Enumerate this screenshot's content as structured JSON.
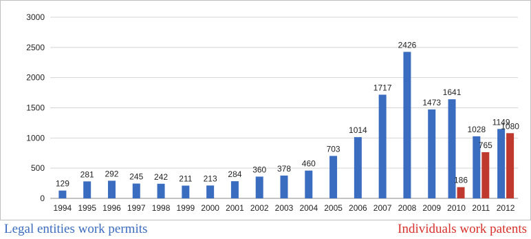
{
  "chart_data": {
    "type": "bar",
    "title": "",
    "xlabel": "",
    "ylabel": "",
    "ylim": [
      0,
      3000
    ],
    "yticks": [
      0,
      500,
      1000,
      1500,
      2000,
      2500,
      3000
    ],
    "grid": "horizontal",
    "legend": "bottom",
    "categories": [
      "1994",
      "1995",
      "1996",
      "1997",
      "1998",
      "1999",
      "2000",
      "2001",
      "2002",
      "2003",
      "2004",
      "2005",
      "2006",
      "2007",
      "2008",
      "2009",
      "2010",
      "2011",
      "2012"
    ],
    "series": [
      {
        "name": "Legal entities work permits",
        "color": "#3a6cc0",
        "values": [
          129,
          281,
          292,
          245,
          242,
          211,
          213,
          284,
          360,
          378,
          460,
          703,
          1014,
          1717,
          2426,
          1473,
          1641,
          1028,
          1149
        ]
      },
      {
        "name": "Individuals work patents",
        "color": "#c0392f",
        "values": [
          null,
          null,
          null,
          null,
          null,
          null,
          null,
          null,
          null,
          null,
          null,
          null,
          null,
          null,
          null,
          null,
          186,
          765,
          1080
        ]
      }
    ]
  },
  "legend": {
    "left_label": "Legal entities work permits",
    "right_label": "Individuals work patents",
    "left_color": "#3a6cc0",
    "right_color": "#d9312b"
  }
}
